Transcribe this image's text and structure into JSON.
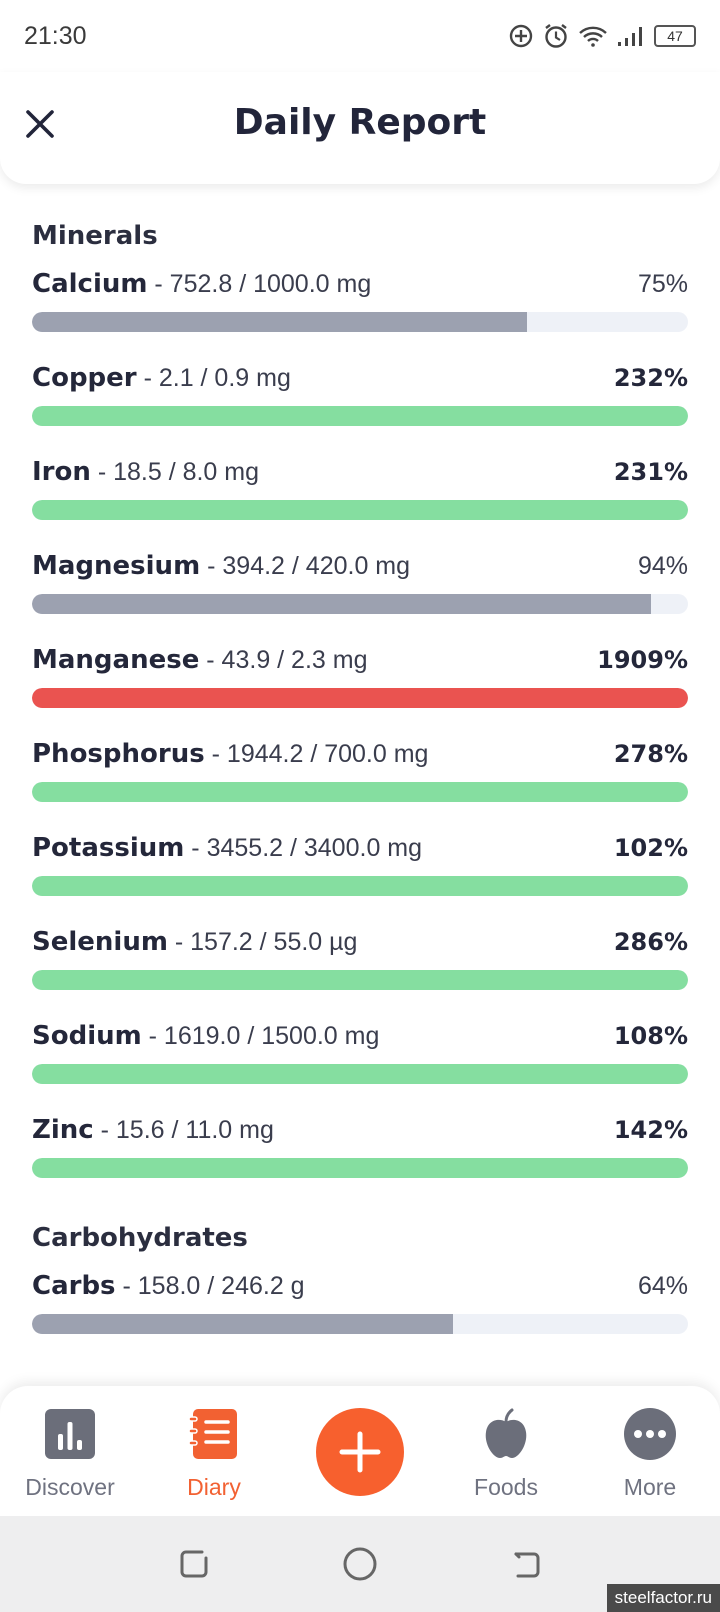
{
  "status_bar": {
    "time": "21:30",
    "icons": [
      "add-circle-icon",
      "alarm-icon",
      "wifi-icon",
      "signal-icon"
    ],
    "battery": "47"
  },
  "header": {
    "title": "Daily Report",
    "close_icon": "close-icon"
  },
  "sections": [
    {
      "title": "Minerals",
      "items": [
        {
          "name": "Calcium",
          "amount": " - 752.8 / 1000.0 mg",
          "percent": "75%",
          "fill_fraction": 0.755,
          "emphasis": false,
          "status": "under"
        },
        {
          "name": "Copper",
          "amount": " - 2.1 / 0.9 mg",
          "percent": "232%",
          "fill_fraction": 1.0,
          "emphasis": true,
          "status": "over"
        },
        {
          "name": "Iron",
          "amount": " - 18.5 / 8.0 mg",
          "percent": "231%",
          "fill_fraction": 1.0,
          "emphasis": true,
          "status": "over"
        },
        {
          "name": "Magnesium",
          "amount": " - 394.2 / 420.0 mg",
          "percent": "94%",
          "fill_fraction": 0.943,
          "emphasis": false,
          "status": "under"
        },
        {
          "name": "Manganese",
          "amount": " - 43.9 / 2.3 mg",
          "percent": "1909%",
          "fill_fraction": 1.0,
          "emphasis": true,
          "status": "excess"
        },
        {
          "name": "Phosphorus",
          "amount": " - 1944.2 / 700.0 mg",
          "percent": "278%",
          "fill_fraction": 1.0,
          "emphasis": true,
          "status": "over"
        },
        {
          "name": "Potassium",
          "amount": " - 3455.2 / 3400.0 mg",
          "percent": "102%",
          "fill_fraction": 1.0,
          "emphasis": true,
          "status": "over"
        },
        {
          "name": "Selenium",
          "amount": " - 157.2 / 55.0 µg",
          "percent": "286%",
          "fill_fraction": 1.0,
          "emphasis": true,
          "status": "over"
        },
        {
          "name": "Sodium",
          "amount": " - 1619.0 / 1500.0 mg",
          "percent": "108%",
          "fill_fraction": 1.0,
          "emphasis": true,
          "status": "over"
        },
        {
          "name": "Zinc",
          "amount": " - 15.6 / 11.0 mg",
          "percent": "142%",
          "fill_fraction": 1.0,
          "emphasis": true,
          "status": "over"
        }
      ]
    },
    {
      "title": "Carbohydrates",
      "items": [
        {
          "name": "Carbs",
          "amount": " - 158.0 / 246.2 g",
          "percent": "64%",
          "fill_fraction": 0.642,
          "emphasis": false,
          "status": "under"
        }
      ]
    }
  ],
  "colors": {
    "under": "#9ca1b0",
    "over": "#85dea0",
    "excess": "#ea5350",
    "track": "#eef1f7",
    "accent": "#f7602e"
  },
  "bottom_nav": {
    "items": [
      {
        "label": "Discover",
        "icon": "bar-chart-icon",
        "active": false
      },
      {
        "label": "Diary",
        "icon": "notebook-icon",
        "active": true
      },
      {
        "label": "Foods",
        "icon": "apple-icon",
        "active": false
      },
      {
        "label": "More",
        "icon": "more-dots-icon",
        "active": false
      }
    ],
    "add_icon": "plus-icon"
  },
  "system_nav": [
    "recents-icon",
    "home-icon",
    "back-icon"
  ],
  "watermark": "steelfactor.ru"
}
